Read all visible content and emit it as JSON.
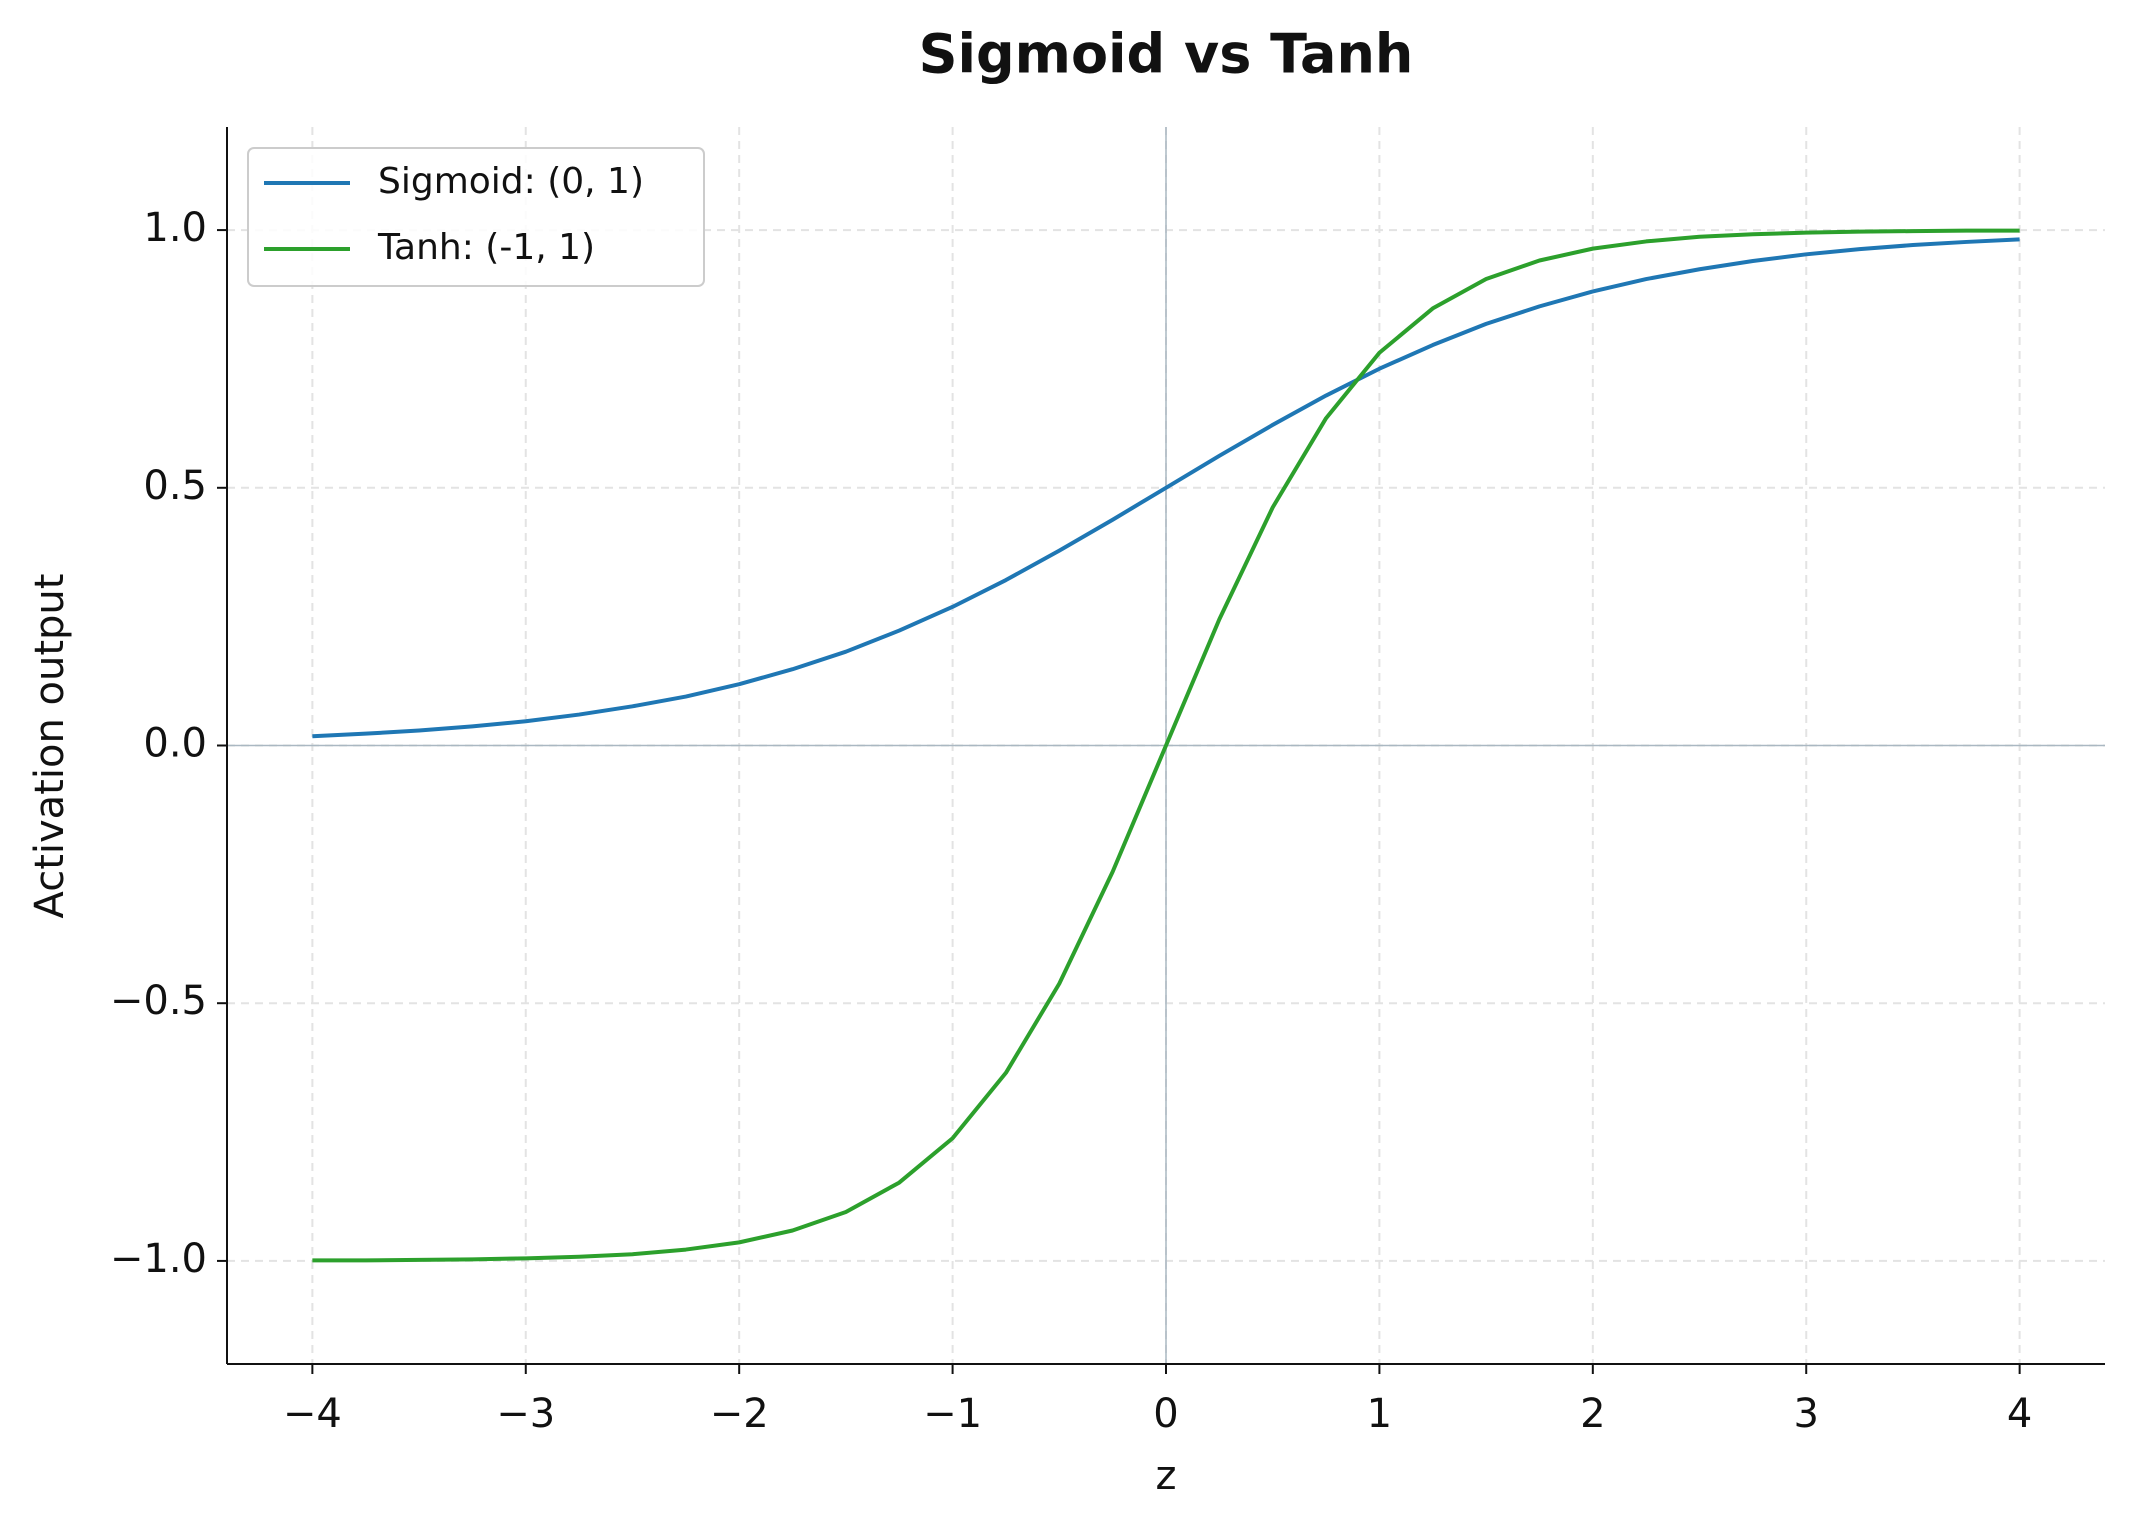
{
  "chart_data": {
    "type": "line",
    "title": "Sigmoid vs Tanh",
    "x_label": "z",
    "y_label": "Activation output",
    "x": [
      -4,
      -3.75,
      -3.5,
      -3.25,
      -3,
      -2.75,
      -2.5,
      -2.25,
      -2,
      -1.75,
      -1.5,
      -1.25,
      -1,
      -0.75,
      -0.5,
      -0.25,
      0,
      0.25,
      0.5,
      0.75,
      1,
      1.25,
      1.5,
      1.75,
      2,
      2.25,
      2.5,
      2.75,
      3,
      3.25,
      3.5,
      3.75,
      4
    ],
    "series": [
      {
        "name": "Sigmoid: (0, 1)",
        "color": "#1f77b4",
        "values": [
          0.018,
          0.023,
          0.029,
          0.037,
          0.047,
          0.06,
          0.076,
          0.095,
          0.119,
          0.148,
          0.182,
          0.223,
          0.269,
          0.321,
          0.378,
          0.438,
          0.5,
          0.562,
          0.622,
          0.679,
          0.731,
          0.777,
          0.818,
          0.852,
          0.881,
          0.905,
          0.924,
          0.94,
          0.953,
          0.963,
          0.971,
          0.977,
          0.982
        ]
      },
      {
        "name": "Tanh: (-1, 1)",
        "color": "#2ca02c",
        "values": [
          -0.999,
          -0.999,
          -0.998,
          -0.997,
          -0.995,
          -0.992,
          -0.987,
          -0.978,
          -0.964,
          -0.941,
          -0.905,
          -0.848,
          -0.762,
          -0.635,
          -0.462,
          -0.245,
          0,
          0.245,
          0.462,
          0.635,
          0.762,
          0.848,
          0.905,
          0.941,
          0.964,
          0.978,
          0.987,
          0.992,
          0.995,
          0.997,
          0.998,
          0.999,
          0.999
        ]
      }
    ],
    "xlim": [
      -4.4,
      4.4
    ],
    "ylim": [
      -1.2,
      1.2
    ],
    "xticks": [
      {
        "value": -4,
        "label": "−4"
      },
      {
        "value": -3,
        "label": "−3"
      },
      {
        "value": -2,
        "label": "−2"
      },
      {
        "value": -1,
        "label": "−1"
      },
      0,
      1,
      2,
      3,
      4
    ],
    "yticks": [
      {
        "value": -1,
        "label": "−1.0"
      },
      {
        "value": -0.5,
        "label": "−0.5"
      },
      {
        "value": 0,
        "label": "0.0"
      },
      {
        "value": 0.5,
        "label": "0.5"
      },
      {
        "value": 1,
        "label": "1.0"
      }
    ],
    "hlines": [
      0
    ],
    "vlines": [
      0
    ],
    "grid": true,
    "legend": "upper left"
  }
}
